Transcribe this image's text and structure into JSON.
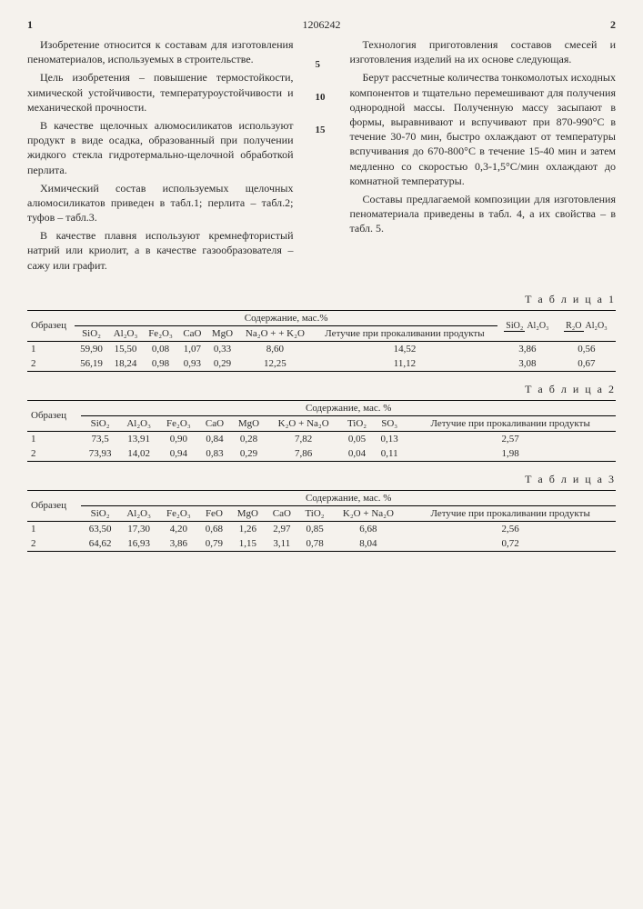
{
  "header": {
    "page_left": "1",
    "doc_num": "1206242",
    "page_right": "2"
  },
  "left_col": {
    "p1": "Изобретение относится к составам для изготовления пеноматериалов, используемых в строительстве.",
    "p2": "Цель изобретения – повышение термостойкости, химической устойчивости, температуроустойчивости и механической прочности.",
    "p3": "В качестве щелочных алюмосиликатов используют продукт в виде осадка, образованный при получении жидкого стекла гидротермально-щелочной обработкой перлита.",
    "p4": "Химический состав используемых щелочных алюмосиликатов приведен в табл.1; перлита – табл.2; туфов – табл.3.",
    "p5": "В качестве плавня используют кремнефтористый натрий или криолит, а в качестве газообразователя – сажу или графит."
  },
  "right_col": {
    "p1": "Технология приготовления составов смесей и изготовления изделий на их основе следующая.",
    "p2": "Берут рассчетные количества тонкомолотых исходных компонентов и тщательно перемешивают для получения однородной массы. Полученную массу засыпают в формы, выравнивают и вспучивают при 870-990°С в течение 30-70 мин, быстро охлаждают от температуры вспучивания до 670-800°С в течение 15-40 мин и затем медленно со скоростью 0,3-1,5°С/мин охлаждают до комнатной температуры.",
    "p3": "Составы предлагаемой композиции для изготовления пеноматериала приведены в табл. 4, а их свойства – в табл. 5."
  },
  "line_marks": [
    "5",
    "10",
    "15"
  ],
  "tables": {
    "t1": {
      "caption": "Т а б л и ц а  1",
      "row_label": "Образец",
      "group_label": "Содержание, мас.%",
      "cols": [
        "SiO₂",
        "Al₂O₃",
        "Fe₂O₃",
        "CaO",
        "MgO",
        "Na₂O + + K₂O",
        "Летучие при прокаливании продукты"
      ],
      "ratio1_top": "SiO₂",
      "ratio1_bot": "Al₂O₃",
      "ratio2_top": "R₂O",
      "ratio2_bot": "Al₂O₃",
      "rows": [
        [
          "1",
          "59,90",
          "15,50",
          "0,08",
          "1,07",
          "0,33",
          "8,60",
          "14,52",
          "3,86",
          "0,56"
        ],
        [
          "2",
          "56,19",
          "18,24",
          "0,98",
          "0,93",
          "0,29",
          "12,25",
          "11,12",
          "3,08",
          "0,67"
        ]
      ]
    },
    "t2": {
      "caption": "Т а б л и ц а  2",
      "row_label": "Образец",
      "group_label": "Содержание, мас. %",
      "cols": [
        "SiO₂",
        "Al₂O₃",
        "Fe₂O₃",
        "CaO",
        "MgO",
        "K₂O + Na₂O",
        "TiO₂",
        "SO₃",
        "Летучие при прокаливании продукты"
      ],
      "rows": [
        [
          "1",
          "73,5",
          "13,91",
          "0,90",
          "0,84",
          "0,28",
          "7,82",
          "0,05",
          "0,13",
          "2,57"
        ],
        [
          "2",
          "73,93",
          "14,02",
          "0,94",
          "0,83",
          "0,29",
          "7,86",
          "0,04",
          "0,11",
          "1,98"
        ]
      ]
    },
    "t3": {
      "caption": "Т а б л и ц а  3",
      "row_label": "Образец",
      "group_label": "Содержание, мас. %",
      "cols": [
        "SiO₂",
        "Al₂O₃",
        "Fe₂O₃",
        "FeO",
        "MgO",
        "CaO",
        "TiO₂",
        "K₂O + Na₂O",
        "Летучие при прокаливании продукты"
      ],
      "rows": [
        [
          "1",
          "63,50",
          "17,30",
          "4,20",
          "0,68",
          "1,26",
          "2,97",
          "0,85",
          "6,68",
          "2,56"
        ],
        [
          "2",
          "64,62",
          "16,93",
          "3,86",
          "0,79",
          "1,15",
          "3,11",
          "0,78",
          "8,04",
          "0,72"
        ]
      ]
    }
  },
  "style": {
    "background_color": "#f5f2ed",
    "text_color": "#2a2a2a",
    "border_color": "#000000",
    "font_body_pt": 12,
    "font_table_pt": 11
  }
}
